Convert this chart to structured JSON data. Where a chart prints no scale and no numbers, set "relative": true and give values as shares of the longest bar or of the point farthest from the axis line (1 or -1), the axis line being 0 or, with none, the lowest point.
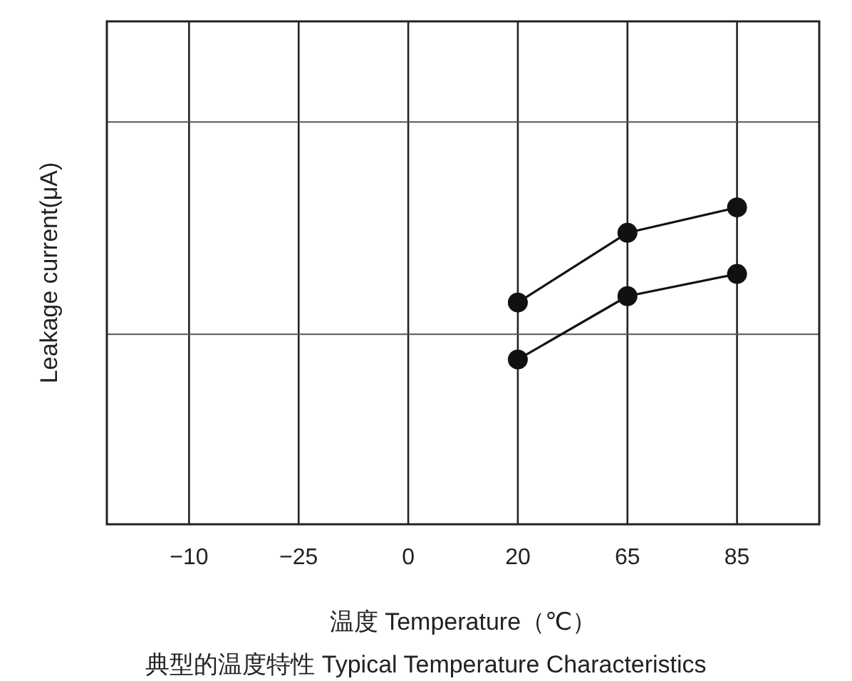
{
  "chart_data": {
    "type": "line",
    "title": "典型的温度特性 Typical Temperature Characteristics",
    "xlabel": "温度 Temperature（℃）",
    "ylabel": "Leakage current(μA)",
    "relative": true,
    "grid": true,
    "marker": "circle",
    "line_style": "solid",
    "ref_lines": [
      {
        "axis": "y",
        "value": 0.6,
        "color": "#555555"
      },
      {
        "axis": "y",
        "value": 1.27,
        "color": "#555555"
      }
    ],
    "categories": [
      "−10",
      "−25",
      "0",
      "20",
      "65",
      "85"
    ],
    "series": [
      {
        "color": "#111111",
        "values": [
          null,
          null,
          null,
          0.7,
          0.92,
          1.0
        ]
      },
      {
        "color": "#111111",
        "values": [
          null,
          null,
          null,
          0.52,
          0.72,
          0.79
        ]
      }
    ]
  }
}
